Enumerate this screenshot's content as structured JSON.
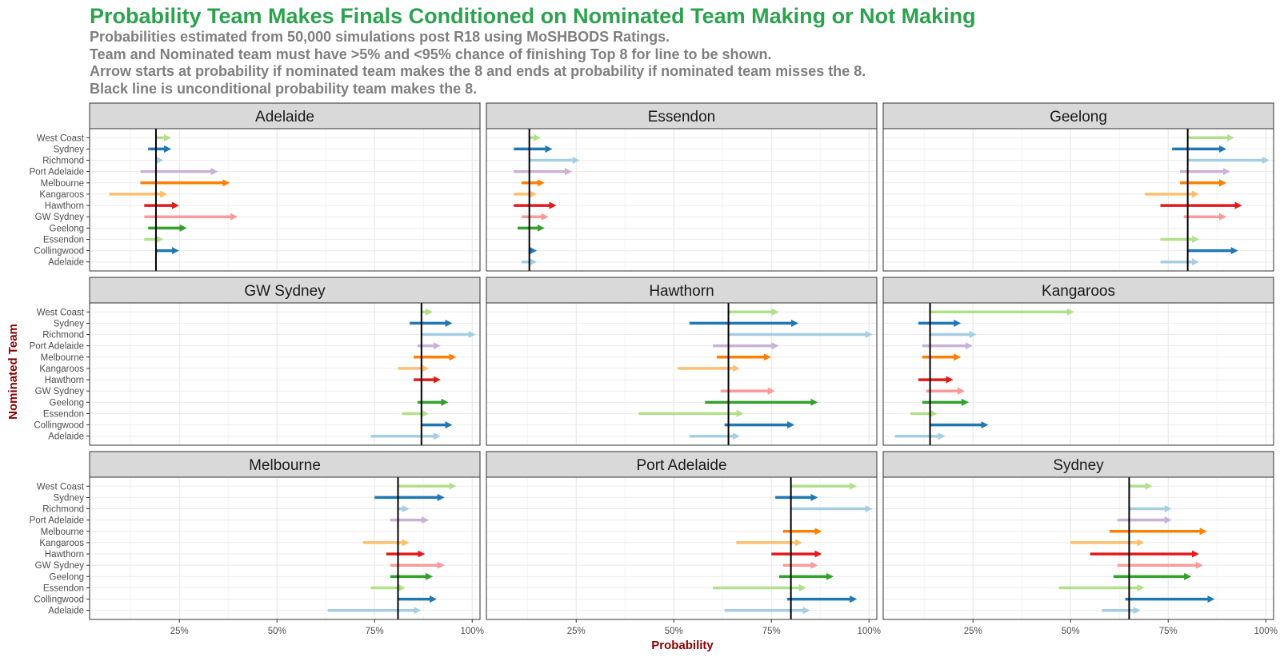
{
  "header": {
    "title": "Probability Team Makes Finals Conditioned on Nominated Team Making or Not Making",
    "subtitle_lines": [
      "Probabilities estimated from 50,000 simulations post R18 using MoSHBODS Ratings.",
      "Team and Nominated team must have >5% and <95% chance of finishing Top 8 for line to be shown.",
      "Arrow starts at probability if nominated team makes the 8 and ends at probability if nominated team misses the 8.",
      "Black line is unconditional probability team makes the 8."
    ]
  },
  "colors": {
    "title": "#2ca24f",
    "subtitle": "#7f7f7f",
    "axis_title": "#8b0000",
    "strip_fill": "#d9d9d9",
    "teams": {
      "West Coast": "#b2df8a",
      "Sydney": "#1f78b4",
      "Richmond": "#a6cee3",
      "Port Adelaide": "#cab2d6",
      "Melbourne": "#ff7f00",
      "Kangaroos": "#fdbf6f",
      "Hawthorn": "#e31a1c",
      "GW Sydney": "#fb9a99",
      "Geelong": "#33a02c",
      "Essendon": "#b2df8a",
      "Collingwood": "#1f78b4",
      "Adelaide": "#a6cee3"
    }
  },
  "chart_data": {
    "type": "faceted-arrow",
    "xlabel": "Probability",
    "ylabel": "Nominated Team",
    "xlim": [
      0.02,
      1.02
    ],
    "x_ticks": [
      0.25,
      0.5,
      0.75,
      1.0
    ],
    "x_tick_labels": [
      "25%",
      "50%",
      "75%",
      "100%"
    ],
    "grid": true,
    "y_categories": [
      "West Coast",
      "Sydney",
      "Richmond",
      "Port Adelaide",
      "Melbourne",
      "Kangaroos",
      "Hawthorn",
      "GW Sydney",
      "Geelong",
      "Essendon",
      "Collingwood",
      "Adelaide"
    ],
    "facets": [
      {
        "team": "Adelaide",
        "unconditional": 0.19,
        "arrows": [
          {
            "nominated": "West Coast",
            "makes": 0.19,
            "misses": 0.22
          },
          {
            "nominated": "Sydney",
            "makes": 0.17,
            "misses": 0.22
          },
          {
            "nominated": "Richmond",
            "makes": 0.19,
            "misses": 0.2
          },
          {
            "nominated": "Port Adelaide",
            "makes": 0.15,
            "misses": 0.34
          },
          {
            "nominated": "Melbourne",
            "makes": 0.15,
            "misses": 0.37
          },
          {
            "nominated": "Kangaroos",
            "makes": 0.07,
            "misses": 0.21
          },
          {
            "nominated": "Hawthorn",
            "makes": 0.16,
            "misses": 0.24
          },
          {
            "nominated": "GW Sydney",
            "makes": 0.16,
            "misses": 0.39
          },
          {
            "nominated": "Geelong",
            "makes": 0.17,
            "misses": 0.26
          },
          {
            "nominated": "Essendon",
            "makes": 0.16,
            "misses": 0.2
          },
          {
            "nominated": "Collingwood",
            "makes": 0.19,
            "misses": 0.24
          }
        ]
      },
      {
        "team": "Essendon",
        "unconditional": 0.13,
        "arrows": [
          {
            "nominated": "West Coast",
            "makes": 0.13,
            "misses": 0.15
          },
          {
            "nominated": "Sydney",
            "makes": 0.09,
            "misses": 0.18
          },
          {
            "nominated": "Richmond",
            "makes": 0.13,
            "misses": 0.25
          },
          {
            "nominated": "Port Adelaide",
            "makes": 0.09,
            "misses": 0.23
          },
          {
            "nominated": "Melbourne",
            "makes": 0.11,
            "misses": 0.16
          },
          {
            "nominated": "Kangaroos",
            "makes": 0.09,
            "misses": 0.14
          },
          {
            "nominated": "Hawthorn",
            "makes": 0.09,
            "misses": 0.19
          },
          {
            "nominated": "GW Sydney",
            "makes": 0.11,
            "misses": 0.17
          },
          {
            "nominated": "Geelong",
            "makes": 0.1,
            "misses": 0.16
          },
          {
            "nominated": "Collingwood",
            "makes": 0.13,
            "misses": 0.14
          },
          {
            "nominated": "Adelaide",
            "makes": 0.11,
            "misses": 0.14
          }
        ]
      },
      {
        "team": "Geelong",
        "unconditional": 0.8,
        "arrows": [
          {
            "nominated": "West Coast",
            "makes": 0.8,
            "misses": 0.91
          },
          {
            "nominated": "Sydney",
            "makes": 0.76,
            "misses": 0.89
          },
          {
            "nominated": "Richmond",
            "makes": 0.8,
            "misses": 1.0
          },
          {
            "nominated": "Port Adelaide",
            "makes": 0.78,
            "misses": 0.9
          },
          {
            "nominated": "Melbourne",
            "makes": 0.78,
            "misses": 0.89
          },
          {
            "nominated": "Kangaroos",
            "makes": 0.69,
            "misses": 0.82
          },
          {
            "nominated": "Hawthorn",
            "makes": 0.73,
            "misses": 0.93
          },
          {
            "nominated": "GW Sydney",
            "makes": 0.79,
            "misses": 0.89
          },
          {
            "nominated": "Essendon",
            "makes": 0.73,
            "misses": 0.82
          },
          {
            "nominated": "Collingwood",
            "makes": 0.8,
            "misses": 0.92
          },
          {
            "nominated": "Adelaide",
            "makes": 0.73,
            "misses": 0.82
          }
        ]
      },
      {
        "team": "GW Sydney",
        "unconditional": 0.87,
        "arrows": [
          {
            "nominated": "West Coast",
            "makes": 0.87,
            "misses": 0.89
          },
          {
            "nominated": "Sydney",
            "makes": 0.84,
            "misses": 0.94
          },
          {
            "nominated": "Richmond",
            "makes": 0.87,
            "misses": 1.0
          },
          {
            "nominated": "Port Adelaide",
            "makes": 0.86,
            "misses": 0.91
          },
          {
            "nominated": "Melbourne",
            "makes": 0.85,
            "misses": 0.95
          },
          {
            "nominated": "Kangaroos",
            "makes": 0.81,
            "misses": 0.88
          },
          {
            "nominated": "Hawthorn",
            "makes": 0.85,
            "misses": 0.91
          },
          {
            "nominated": "Geelong",
            "makes": 0.86,
            "misses": 0.93
          },
          {
            "nominated": "Essendon",
            "makes": 0.82,
            "misses": 0.88
          },
          {
            "nominated": "Collingwood",
            "makes": 0.87,
            "misses": 0.94
          },
          {
            "nominated": "Adelaide",
            "makes": 0.74,
            "misses": 0.91
          }
        ]
      },
      {
        "team": "Hawthorn",
        "unconditional": 0.64,
        "arrows": [
          {
            "nominated": "West Coast",
            "makes": 0.64,
            "misses": 0.76
          },
          {
            "nominated": "Sydney",
            "makes": 0.54,
            "misses": 0.81
          },
          {
            "nominated": "Richmond",
            "makes": 0.64,
            "misses": 1.0
          },
          {
            "nominated": "Port Adelaide",
            "makes": 0.6,
            "misses": 0.76
          },
          {
            "nominated": "Melbourne",
            "makes": 0.61,
            "misses": 0.74
          },
          {
            "nominated": "Kangaroos",
            "makes": 0.51,
            "misses": 0.66
          },
          {
            "nominated": "GW Sydney",
            "makes": 0.62,
            "misses": 0.75
          },
          {
            "nominated": "Geelong",
            "makes": 0.58,
            "misses": 0.86
          },
          {
            "nominated": "Essendon",
            "makes": 0.41,
            "misses": 0.67
          },
          {
            "nominated": "Collingwood",
            "makes": 0.63,
            "misses": 0.8
          },
          {
            "nominated": "Adelaide",
            "makes": 0.54,
            "misses": 0.66
          }
        ]
      },
      {
        "team": "Kangaroos",
        "unconditional": 0.14,
        "arrows": [
          {
            "nominated": "West Coast",
            "makes": 0.14,
            "misses": 0.5
          },
          {
            "nominated": "Sydney",
            "makes": 0.11,
            "misses": 0.21
          },
          {
            "nominated": "Richmond",
            "makes": 0.14,
            "misses": 0.25
          },
          {
            "nominated": "Port Adelaide",
            "makes": 0.12,
            "misses": 0.24
          },
          {
            "nominated": "Melbourne",
            "makes": 0.12,
            "misses": 0.21
          },
          {
            "nominated": "Hawthorn",
            "makes": 0.11,
            "misses": 0.19
          },
          {
            "nominated": "GW Sydney",
            "makes": 0.13,
            "misses": 0.22
          },
          {
            "nominated": "Geelong",
            "makes": 0.12,
            "misses": 0.23
          },
          {
            "nominated": "Essendon",
            "makes": 0.09,
            "misses": 0.15
          },
          {
            "nominated": "Collingwood",
            "makes": 0.14,
            "misses": 0.28
          },
          {
            "nominated": "Adelaide",
            "makes": 0.05,
            "misses": 0.17
          }
        ]
      },
      {
        "team": "Melbourne",
        "unconditional": 0.81,
        "arrows": [
          {
            "nominated": "West Coast",
            "makes": 0.81,
            "misses": 0.95
          },
          {
            "nominated": "Sydney",
            "makes": 0.75,
            "misses": 0.92
          },
          {
            "nominated": "Richmond",
            "makes": 0.81,
            "misses": 0.83
          },
          {
            "nominated": "Port Adelaide",
            "makes": 0.79,
            "misses": 0.88
          },
          {
            "nominated": "Kangaroos",
            "makes": 0.72,
            "misses": 0.83
          },
          {
            "nominated": "Hawthorn",
            "makes": 0.78,
            "misses": 0.87
          },
          {
            "nominated": "GW Sydney",
            "makes": 0.79,
            "misses": 0.92
          },
          {
            "nominated": "Geelong",
            "makes": 0.79,
            "misses": 0.89
          },
          {
            "nominated": "Essendon",
            "makes": 0.74,
            "misses": 0.82
          },
          {
            "nominated": "Collingwood",
            "makes": 0.81,
            "misses": 0.9
          },
          {
            "nominated": "Adelaide",
            "makes": 0.63,
            "misses": 0.86
          }
        ]
      },
      {
        "team": "Port Adelaide",
        "unconditional": 0.8,
        "arrows": [
          {
            "nominated": "West Coast",
            "makes": 0.8,
            "misses": 0.96
          },
          {
            "nominated": "Sydney",
            "makes": 0.76,
            "misses": 0.86
          },
          {
            "nominated": "Richmond",
            "makes": 0.8,
            "misses": 1.0
          },
          {
            "nominated": "Melbourne",
            "makes": 0.78,
            "misses": 0.87
          },
          {
            "nominated": "Kangaroos",
            "makes": 0.66,
            "misses": 0.82
          },
          {
            "nominated": "Hawthorn",
            "makes": 0.75,
            "misses": 0.87
          },
          {
            "nominated": "GW Sydney",
            "makes": 0.78,
            "misses": 0.86
          },
          {
            "nominated": "Geelong",
            "makes": 0.77,
            "misses": 0.9
          },
          {
            "nominated": "Essendon",
            "makes": 0.6,
            "misses": 0.83
          },
          {
            "nominated": "Collingwood",
            "makes": 0.79,
            "misses": 0.96
          },
          {
            "nominated": "Adelaide",
            "makes": 0.63,
            "misses": 0.84
          }
        ]
      },
      {
        "team": "Sydney",
        "unconditional": 0.65,
        "arrows": [
          {
            "nominated": "West Coast",
            "makes": 0.65,
            "misses": 0.7
          },
          {
            "nominated": "Richmond",
            "makes": 0.65,
            "misses": 0.75
          },
          {
            "nominated": "Port Adelaide",
            "makes": 0.62,
            "misses": 0.75
          },
          {
            "nominated": "Melbourne",
            "makes": 0.6,
            "misses": 0.84
          },
          {
            "nominated": "Kangaroos",
            "makes": 0.5,
            "misses": 0.68
          },
          {
            "nominated": "Hawthorn",
            "makes": 0.55,
            "misses": 0.82
          },
          {
            "nominated": "GW Sydney",
            "makes": 0.62,
            "misses": 0.83
          },
          {
            "nominated": "Geelong",
            "makes": 0.61,
            "misses": 0.8
          },
          {
            "nominated": "Essendon",
            "makes": 0.47,
            "misses": 0.68
          },
          {
            "nominated": "Collingwood",
            "makes": 0.64,
            "misses": 0.86
          },
          {
            "nominated": "Adelaide",
            "makes": 0.58,
            "misses": 0.67
          }
        ]
      }
    ]
  }
}
